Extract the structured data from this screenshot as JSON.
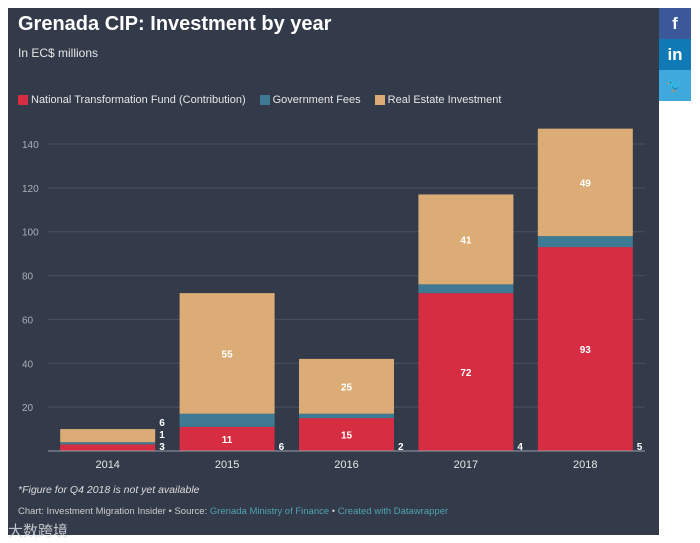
{
  "title": "Grenada CIP: Investment by year",
  "subtitle": "In EC$ millions",
  "social": {
    "facebook": "f",
    "linkedin": "in",
    "twitter": "🐦"
  },
  "note": "*Figure for Q4 2018 is not yet available",
  "credit": {
    "prefix": "Chart: Investment Migration Insider • Source: ",
    "source": "Grenada Ministry of Finance",
    "sep": " • ",
    "created": "Created with Datawrapper"
  },
  "watermark": "大数跨境",
  "colors": {
    "ntf": "#d62d42",
    "fees": "#3f7a94",
    "realestate": "#dcac76",
    "bg": "#333a49"
  },
  "chart_data": {
    "type": "bar",
    "stacked": true,
    "title": "Grenada CIP: Investment by year",
    "ylabel": "In EC$ millions",
    "categories": [
      "2014",
      "2015",
      "2016",
      "2017",
      "2018"
    ],
    "series": [
      {
        "name": "National Transformation Fund (Contribution)",
        "values": [
          3,
          11,
          15,
          72,
          93
        ]
      },
      {
        "name": "Government Fees",
        "values": [
          1,
          6,
          2,
          4,
          5
        ]
      },
      {
        "name": "Real Estate Investment",
        "values": [
          6,
          55,
          25,
          41,
          49
        ]
      }
    ],
    "ylim": [
      0,
      140
    ],
    "yticks": [
      20,
      40,
      60,
      80,
      100,
      120,
      140
    ],
    "grid": true,
    "legend": "top-left"
  }
}
